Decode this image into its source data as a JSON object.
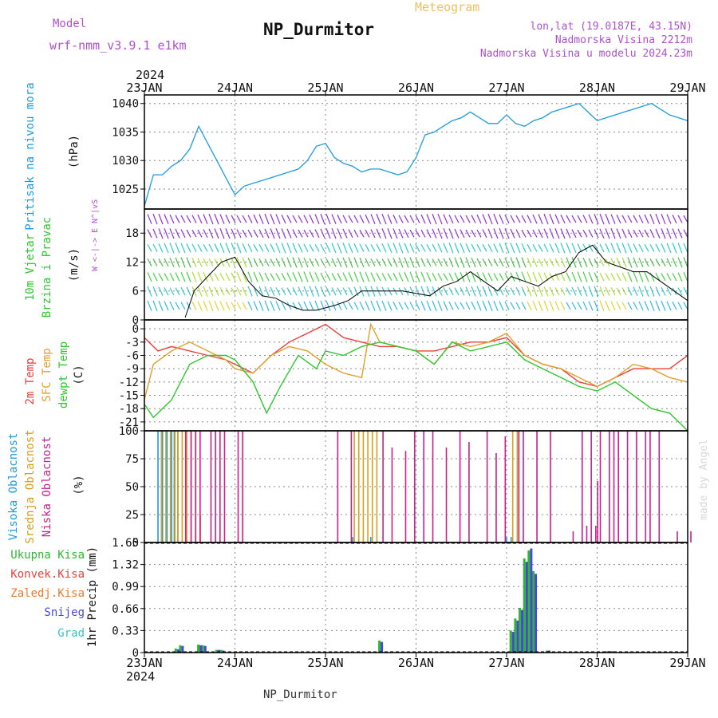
{
  "header": {
    "model_label": "Model",
    "model_name": "wrf-nmm_v3.9.1  e1km",
    "product": "Meteogram",
    "station": "NP_Durmitor",
    "lonlat": "lon,lat (19.0187E, 43.15N)",
    "elevation": "Nadmorska Visina 2212m",
    "model_elevation": "Nadmorska Visina u modelu 2024.23m"
  },
  "time_axis": {
    "year": "2024",
    "labels": [
      "23JAN",
      "24JAN",
      "25JAN",
      "26JAN",
      "27JAN",
      "28JAN",
      "29JAN"
    ],
    "footer": "NP_Durmitor"
  },
  "watermark": "made by Angel",
  "colors": {
    "pressure": "#1e9be0",
    "wind_black": "#000000",
    "temp2m": "#e8423c",
    "sfc": "#e0a030",
    "dewpt": "#2ec82e",
    "high": "#1e9be0",
    "mid": "#d4a020",
    "low": "#c8208c",
    "total": "#2eb82e",
    "conv": "#e8423c",
    "freezing": "#f07a2a",
    "snow": "#4848d8",
    "hail": "#30c8c8",
    "header_purple": "#b050d0",
    "product_orange": "#f0c060"
  },
  "chart_data": [
    {
      "type": "line",
      "title": "Pritisak na nivou mora",
      "ylabel": "(hPa)",
      "ylim": [
        1021.5,
        1041.5
      ],
      "yticks": [
        "1025",
        "1030",
        "1035",
        "1040"
      ],
      "grid": true,
      "series": [
        {
          "name": "Pritisak na nivou mora",
          "x": [
            0,
            0.1,
            0.2,
            0.3,
            0.4,
            0.5,
            0.6,
            0.7,
            0.8,
            0.9,
            1,
            1.1,
            1.2,
            1.3,
            1.4,
            1.5,
            1.6,
            1.7,
            1.8,
            1.9,
            2,
            2.1,
            2.2,
            2.3,
            2.4,
            2.5,
            2.6,
            2.7,
            2.8,
            2.9,
            3,
            3.1,
            3.2,
            3.3,
            3.4,
            3.5,
            3.6,
            3.7,
            3.8,
            3.9,
            4,
            4.1,
            4.2,
            4.3,
            4.4,
            4.5,
            4.6,
            4.7,
            4.8,
            4.9,
            5,
            5.1,
            5.2,
            5.3,
            5.4,
            5.5,
            5.6,
            5.7,
            5.8,
            5.9,
            6
          ],
          "values": [
            1022,
            1027.5,
            1027.5,
            1029,
            1030,
            1032,
            1036,
            1033,
            1030,
            1027,
            1024,
            1025.5,
            1026,
            1026.5,
            1027,
            1027.5,
            1028,
            1028.5,
            1030,
            1032.5,
            1033,
            1030.5,
            1029.5,
            1029,
            1028,
            1028.5,
            1028.5,
            1028,
            1027.5,
            1028,
            1030.5,
            1034.5,
            1035,
            1036,
            1037,
            1037.5,
            1038.5,
            1037.5,
            1036.5,
            1036.5,
            1038,
            1036.5,
            1036,
            1037,
            1037.5,
            1038.5,
            1039,
            1039.5,
            1040,
            1038.5,
            1037,
            1037.5,
            1038,
            1038.5,
            1039,
            1039.5,
            1040,
            1039,
            1038,
            1037.5,
            1037
          ]
        }
      ]
    },
    {
      "type": "line",
      "title": "10m Vjetar Brzina i Pravac",
      "ylabel": "(m/s)",
      "direction_key": "W <-|-> E  N^|vS",
      "ylim": [
        0,
        23
      ],
      "yticks": [
        "0",
        "6",
        "12",
        "18"
      ],
      "grid": true,
      "series": [
        {
          "name": "10m Vjetar Brzina",
          "x": [
            0.45,
            0.55,
            0.7,
            0.85,
            1,
            1.15,
            1.3,
            1.45,
            1.6,
            1.75,
            1.9,
            2,
            2.1,
            2.25,
            2.4,
            2.55,
            2.7,
            2.85,
            3,
            3.15,
            3.3,
            3.45,
            3.6,
            3.75,
            3.9,
            4.05,
            4.2,
            4.35,
            4.5,
            4.65,
            4.8,
            4.95,
            5.1,
            5.25,
            5.4,
            5.55,
            5.7,
            5.85,
            6
          ],
          "values": [
            0.5,
            6,
            9,
            12,
            13,
            8,
            5,
            4.5,
            3,
            2,
            2,
            2.5,
            3,
            4,
            6,
            6,
            6,
            6,
            5.5,
            5,
            7,
            8,
            10,
            8,
            6,
            9,
            8,
            7,
            9,
            10,
            14,
            15.5,
            12,
            11,
            10,
            10,
            8,
            6,
            4
          ]
        }
      ]
    },
    {
      "type": "line",
      "title": "2m Temp / SFC Temp / dewpt Temp",
      "ylabel": "(C)",
      "ylim": [
        -23,
        2
      ],
      "yticks": [
        "-21",
        "-18",
        "-15",
        "-12",
        "-9",
        "-6",
        "-3",
        "0"
      ],
      "grid": true,
      "series": [
        {
          "name": "2m Temp",
          "x": [
            0,
            0.15,
            0.3,
            0.5,
            0.7,
            0.9,
            1,
            1.2,
            1.4,
            1.6,
            1.8,
            2,
            2.2,
            2.4,
            2.6,
            2.8,
            3,
            3.2,
            3.4,
            3.6,
            3.8,
            4,
            4.2,
            4.4,
            4.6,
            4.8,
            5,
            5.2,
            5.4,
            5.6,
            5.8,
            6
          ],
          "values": [
            -2,
            -5,
            -4,
            -5,
            -6,
            -7,
            -8,
            -10,
            -6,
            -3,
            -1,
            1,
            -2,
            -3,
            -4,
            -4,
            -5,
            -5,
            -4,
            -3,
            -3,
            -2,
            -6,
            -8,
            -9,
            -12,
            -13,
            -11,
            -9,
            -9,
            -9,
            -6
          ]
        },
        {
          "name": "SFC Temp",
          "x": [
            0,
            0.1,
            0.3,
            0.5,
            0.7,
            0.9,
            1,
            1.2,
            1.4,
            1.6,
            1.8,
            2,
            2.2,
            2.4,
            2.5,
            2.6,
            2.8,
            3,
            3.2,
            3.4,
            3.6,
            3.8,
            4,
            4.2,
            4.4,
            4.6,
            4.8,
            5,
            5.2,
            5.4,
            5.6,
            5.8,
            6
          ],
          "values": [
            -16,
            -8,
            -5,
            -3,
            -5,
            -7,
            -9,
            -10,
            -6,
            -4,
            -5,
            -8,
            -10,
            -11,
            1,
            -3,
            -4,
            -5,
            -8,
            -3,
            -4,
            -3,
            -1,
            -6,
            -8,
            -9,
            -11,
            -13,
            -11,
            -8,
            -9,
            -11,
            -12
          ]
        },
        {
          "name": "dewpt Temp",
          "x": [
            0,
            0.1,
            0.3,
            0.5,
            0.7,
            0.9,
            1,
            1.2,
            1.35,
            1.5,
            1.7,
            1.9,
            2,
            2.2,
            2.4,
            2.6,
            2.8,
            3,
            3.2,
            3.4,
            3.6,
            3.8,
            4,
            4.2,
            4.4,
            4.6,
            4.8,
            5,
            5.2,
            5.4,
            5.6,
            5.8,
            6
          ],
          "values": [
            -17,
            -20,
            -16,
            -8,
            -6,
            -6,
            -7,
            -12,
            -19,
            -13,
            -6,
            -9,
            -5,
            -6,
            -4,
            -3,
            -4,
            -5,
            -8,
            -3,
            -5,
            -4,
            -3,
            -7,
            -9,
            -11,
            -13,
            -14,
            -12,
            -15,
            -18,
            -19,
            -23
          ]
        }
      ]
    },
    {
      "type": "bar",
      "title": "Visoka Oblacnost / Srednja Oblacnost / Niska Oblacnost",
      "ylabel": "(%)",
      "ylim": [
        0,
        100
      ],
      "yticks": [
        "0",
        "25",
        "50",
        "75",
        "100"
      ],
      "grid": true,
      "series": [
        {
          "name": "Visoka Oblacnost",
          "x": [
            0.15,
            0.2,
            0.25,
            0.3,
            0.33,
            0.37,
            2.3,
            2.5,
            4,
            4.05
          ],
          "values": [
            100,
            100,
            100,
            100,
            100,
            100,
            5,
            5,
            5,
            5
          ]
        },
        {
          "name": "Srednja Oblacnost",
          "x": [
            0.17,
            0.22,
            0.27,
            0.32,
            0.35,
            0.4,
            0.45,
            0.5,
            0.55,
            0.6,
            2.3,
            2.35,
            2.4,
            2.45,
            2.5,
            2.55,
            4.05,
            4.1
          ],
          "values": [
            100,
            100,
            100,
            100,
            100,
            100,
            100,
            100,
            100,
            25,
            100,
            100,
            100,
            100,
            100,
            100,
            100,
            100
          ]
        },
        {
          "name": "Niska Oblacnost",
          "x": [
            0.42,
            0.48,
            0.53,
            0.58,
            0.7,
            0.75,
            0.8,
            0.85,
            1,
            1.05,
            2.1,
            2.25,
            2.6,
            2.7,
            2.85,
            2.95,
            3.05,
            3.15,
            3.3,
            3.45,
            3.55,
            3.75,
            3.85,
            3.95,
            4.1,
            4.15,
            4.3,
            4.45,
            4.7,
            4.8,
            4.85,
            4.9,
            4.95,
            4.97,
            5,
            5.1,
            5.15,
            5.2,
            5.3,
            5.4,
            5.5,
            5.55,
            5.65,
            5.85,
            6
          ],
          "values": [
            100,
            100,
            100,
            100,
            100,
            100,
            100,
            100,
            100,
            100,
            100,
            100,
            100,
            85,
            82,
            100,
            100,
            100,
            85,
            100,
            90,
            100,
            80,
            95,
            100,
            100,
            100,
            100,
            10,
            100,
            15,
            100,
            15,
            55,
            100,
            100,
            100,
            100,
            100,
            100,
            100,
            100,
            100,
            10,
            10
          ]
        }
      ]
    },
    {
      "type": "bar",
      "title": "1hr Precip",
      "ylabel": "1hr Precip (mm)",
      "ylim": [
        0,
        1.65
      ],
      "yticks": [
        "0",
        "0.33",
        "0.66",
        "0.99",
        "1.32",
        "1.65"
      ],
      "grid": true,
      "series_labels": [
        "Ukupna Kisa",
        "Konvek.Kisa",
        "Zaledj.Kisa",
        "Snijeg",
        "Grad"
      ],
      "series": [
        {
          "name": "Ukupna Kisa",
          "x": [
            0.35,
            0.4,
            0.6,
            0.65,
            0.8,
            0.85,
            2.6,
            4.05,
            4.1,
            4.15,
            4.2,
            4.25,
            4.3,
            4.45,
            5.1,
            5.15
          ],
          "values": [
            0.06,
            0.11,
            0.12,
            0.11,
            0.04,
            0.04,
            0.18,
            0.33,
            0.51,
            0.67,
            1.41,
            1.53,
            1.22,
            0.03,
            0.02,
            0.02
          ]
        },
        {
          "name": "Snijeg",
          "x": [
            0.35,
            0.4,
            0.6,
            0.65,
            0.8,
            0.85,
            2.6,
            4.05,
            4.1,
            4.15,
            4.2,
            4.25,
            4.3,
            4.45,
            5.1,
            5.15
          ],
          "values": [
            0.05,
            0.1,
            0.11,
            0.1,
            0.04,
            0.03,
            0.16,
            0.31,
            0.48,
            0.64,
            1.36,
            1.56,
            1.18,
            0.03,
            0.02,
            0.02
          ]
        }
      ]
    }
  ]
}
